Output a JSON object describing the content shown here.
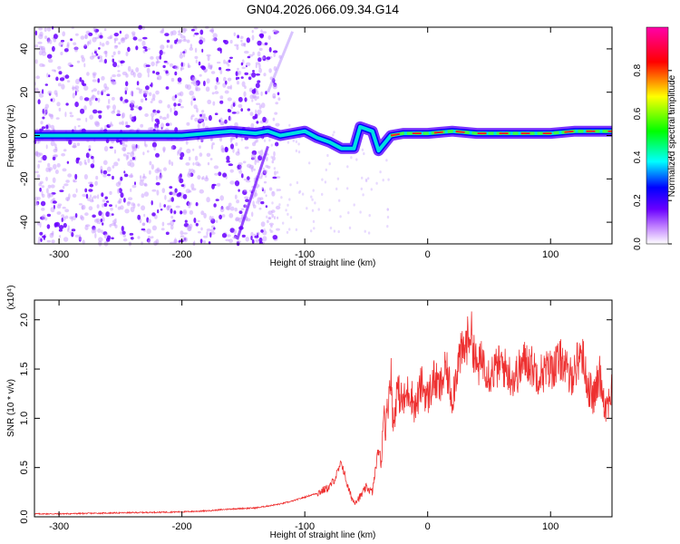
{
  "figure_title": "GN04.2026.066.09.34.G14",
  "chart_data": [
    {
      "type": "heatmap",
      "title": "GN04.2026.066.09.34.G14",
      "xlabel": "Height of straight line (km)",
      "ylabel": "Frequency (Hz)",
      "xlim": [
        -320,
        150
      ],
      "ylim": [
        -50,
        50
      ],
      "xticks": [
        -300,
        -200,
        -100,
        0,
        100
      ],
      "yticks": [
        -40,
        -20,
        0,
        20,
        40
      ],
      "colorbar": {
        "label": "Normalized spectral amplitude",
        "range": [
          0,
          1
        ],
        "ticks": [
          0.0,
          0.2,
          0.4,
          0.6,
          0.8
        ],
        "tick_labels": [
          "0.0",
          "0.2",
          "0.4",
          "0.6",
          "0.8"
        ],
        "colormap": [
          "#ffffff",
          "#6a00ff",
          "#0000ff",
          "#00ffff",
          "#00ff00",
          "#ffff00",
          "#ff0000",
          "#ff00aa"
        ]
      },
      "ridge": {
        "x": [
          -320,
          -280,
          -240,
          -200,
          -180,
          -160,
          -140,
          -130,
          -120,
          -110,
          -100,
          -90,
          -80,
          -70,
          -60,
          -55,
          -50,
          -45,
          -40,
          -30,
          -20,
          -10,
          0,
          20,
          40,
          60,
          80,
          100,
          120,
          150
        ],
        "y": [
          0,
          0,
          0,
          0,
          1,
          2,
          1,
          2,
          0,
          1,
          2,
          -1,
          -3,
          -6,
          -6,
          4,
          3,
          2,
          -7,
          0,
          1,
          1,
          1,
          2,
          1,
          1,
          1,
          1,
          2,
          2
        ]
      },
      "legend": "none",
      "grid": false
    },
    {
      "type": "line",
      "xlabel": "Height of straight line (km)",
      "ylabel": "SNR (10 * v/v)",
      "scale_note": "(x10⁴)",
      "xlim": [
        -320,
        150
      ],
      "ylim": [
        0,
        2.2
      ],
      "xticks": [
        -300,
        -200,
        -100,
        0,
        100
      ],
      "yticks": [
        0.0,
        0.5,
        1.0,
        1.5,
        2.0
      ],
      "ytick_labels": [
        "0.0",
        "0.5",
        "1.0",
        "1.5",
        "2.0"
      ],
      "color": "#ee3030",
      "series": [
        {
          "x": [
            -320,
            -300,
            -250,
            -200,
            -180,
            -160,
            -140,
            -130,
            -120,
            -110,
            -100,
            -90,
            -80,
            -75,
            -70,
            -68,
            -65,
            -62,
            -60,
            -55,
            -50,
            -45,
            -40,
            -38,
            -36,
            -34,
            -32,
            -30,
            -28,
            -25,
            -20,
            -15,
            -10,
            -5,
            0,
            5,
            10,
            15,
            20,
            25,
            30,
            35,
            40,
            45,
            50,
            55,
            60,
            70,
            80,
            90,
            100,
            110,
            115,
            120,
            125,
            130,
            135,
            140,
            145,
            150
          ],
          "values": [
            0.03,
            0.03,
            0.04,
            0.05,
            0.06,
            0.08,
            0.09,
            0.11,
            0.13,
            0.16,
            0.2,
            0.24,
            0.3,
            0.4,
            0.55,
            0.45,
            0.3,
            0.2,
            0.15,
            0.2,
            0.3,
            0.25,
            0.7,
            0.5,
            1.1,
            0.9,
            1.2,
            1.5,
            0.9,
            1.3,
            1.15,
            1.3,
            1.1,
            1.35,
            1.2,
            1.4,
            1.3,
            1.5,
            1.2,
            1.6,
            1.7,
            1.9,
            1.5,
            1.6,
            1.45,
            1.5,
            1.55,
            1.4,
            1.6,
            1.45,
            1.5,
            1.6,
            1.4,
            1.5,
            1.7,
            1.35,
            1.2,
            1.45,
            1.1,
            1.3
          ]
        }
      ],
      "legend": "none",
      "grid": false
    }
  ]
}
